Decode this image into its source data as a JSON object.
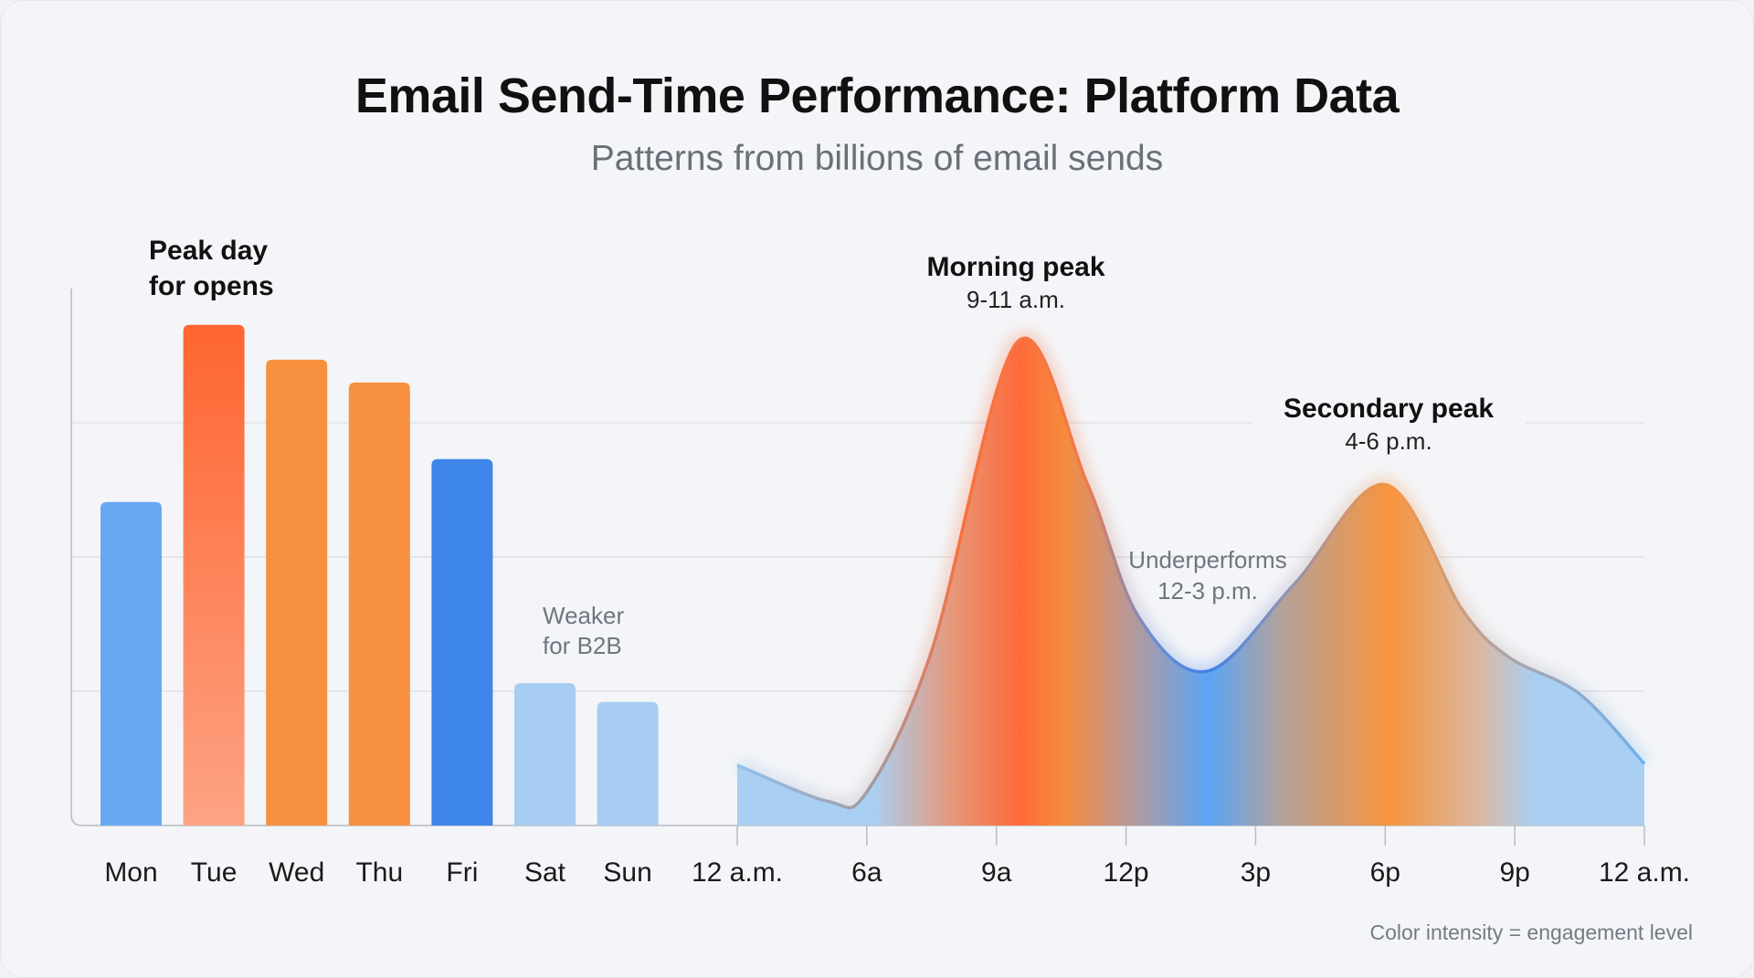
{
  "title": "Email Send-Time Performance: Platform Data",
  "subtitle": "Patterns from billions of email sends",
  "footnote": "Color intensity = engagement level",
  "chart_data": [
    {
      "type": "bar",
      "categories": [
        "Mon",
        "Tue",
        "Wed",
        "Thu",
        "Fri",
        "Sat",
        "Sun"
      ],
      "values": [
        2.41,
        3.73,
        3.47,
        3.3,
        2.73,
        1.06,
        0.92
      ],
      "colors": [
        "#67a8f3",
        "#fe6a35",
        "#f7913f",
        "#f7913f",
        "#3f86ea",
        "#a7cdf2",
        "#a7cdf2"
      ],
      "ylim": [
        0,
        4
      ],
      "grid": true,
      "annotations": [
        {
          "bold": "Peak day",
          "text": "for opens"
        },
        {
          "text": "Weaker",
          "text2": "for B2B"
        }
      ]
    },
    {
      "type": "area",
      "x_ticks": [
        "12 a.m.",
        "6a",
        "9a",
        "12p",
        "3p",
        "6p",
        "9p",
        "12 a.m."
      ],
      "points": [
        [
          0,
          0.45
        ],
        [
          0.7,
          0.18
        ],
        [
          1,
          0.25
        ],
        [
          1.5,
          1.3
        ],
        [
          2.16,
          3.6
        ],
        [
          2.7,
          2.55
        ],
        [
          3.1,
          1.55
        ],
        [
          3.63,
          1.15
        ],
        [
          4.3,
          1.8
        ],
        [
          5.0,
          2.54
        ],
        [
          5.6,
          1.6
        ],
        [
          5.96,
          1.25
        ],
        [
          6.5,
          0.98
        ],
        [
          7,
          0.46
        ]
      ],
      "ylim": [
        0,
        4
      ],
      "grid": true,
      "annotations": {
        "morning": {
          "bold": "Morning peak",
          "text": "9-11 a.m."
        },
        "secondary": {
          "bold": "Secondary peak",
          "text": "4-6 p.m."
        },
        "under": {
          "text": "Underperforms",
          "text2": "12-3 p.m."
        }
      },
      "gradient_colors": {
        "low": "#a9cff2",
        "peak": "#fd6a3a",
        "high": "#f7943e",
        "mid": "#5aa5f5"
      }
    }
  ]
}
